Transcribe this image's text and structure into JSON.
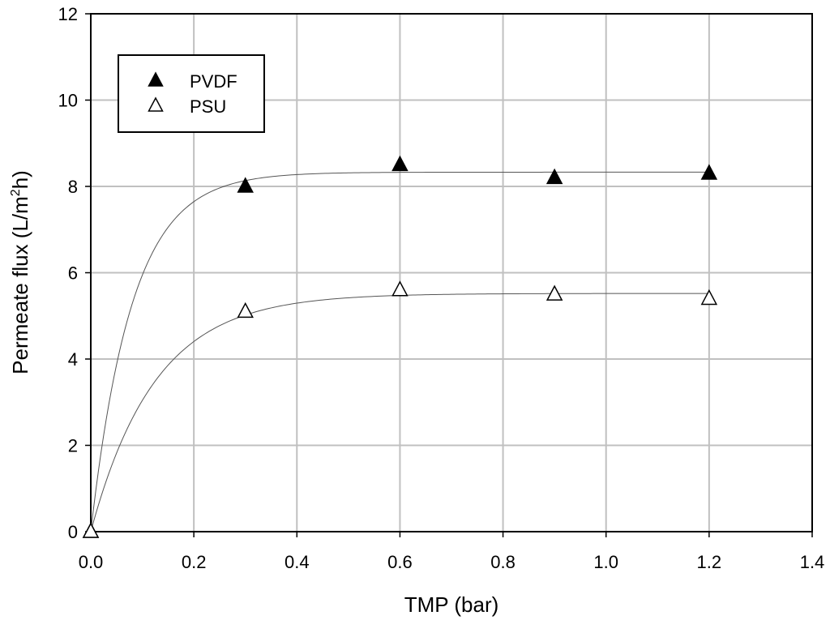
{
  "chart_data": {
    "type": "scatter",
    "xlabel": "TMP (bar)",
    "ylabel_main": "Permeate flux (L/m",
    "ylabel_sup": "2",
    "ylabel_tail": "h)",
    "xlim": [
      0.0,
      1.4
    ],
    "ylim": [
      0,
      12
    ],
    "xticks": [
      0.0,
      0.2,
      0.4,
      0.6,
      0.8,
      1.0,
      1.2,
      1.4
    ],
    "xtick_labels": [
      "0.0",
      "0.2",
      "0.4",
      "0.6",
      "0.8",
      "1.0",
      "1.2",
      "1.4"
    ],
    "yticks": [
      0,
      2,
      4,
      6,
      8,
      10,
      12
    ],
    "ytick_labels": [
      "0",
      "2",
      "4",
      "6",
      "8",
      "10",
      "12"
    ],
    "grid": true,
    "legend_position": "top-left",
    "series": [
      {
        "name": "PVDF",
        "marker": "filled-triangle",
        "color": "#000000",
        "x": [
          0.0,
          0.3,
          0.6,
          0.9,
          1.2
        ],
        "y": [
          0.0,
          8.0,
          8.5,
          8.2,
          8.3
        ],
        "fit": {
          "plateau": 8.33,
          "k": 12.5
        }
      },
      {
        "name": "PSU",
        "marker": "open-triangle",
        "color": "#000000",
        "x": [
          0.0,
          0.3,
          0.6,
          0.9,
          1.2
        ],
        "y": [
          0.0,
          5.1,
          5.6,
          5.5,
          5.4
        ],
        "fit": {
          "plateau": 5.52,
          "k": 8.0
        }
      }
    ]
  }
}
